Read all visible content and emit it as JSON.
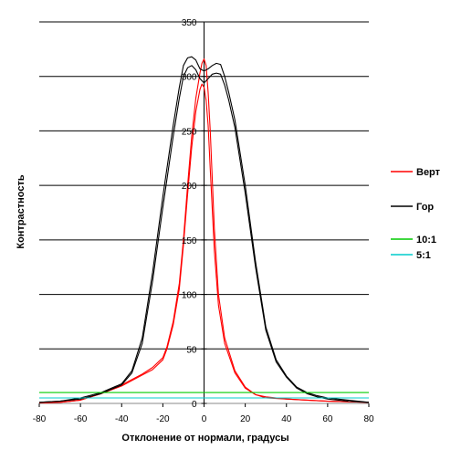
{
  "chart_data": {
    "type": "line",
    "title": "",
    "xlabel": "Отклонение от нормали, градусы",
    "ylabel": "Контрастность",
    "xlim": [
      -80,
      80
    ],
    "ylim": [
      0,
      350
    ],
    "xticks": [
      -80,
      -60,
      -40,
      -20,
      0,
      20,
      40,
      60,
      80
    ],
    "yticks": [
      0,
      50,
      100,
      150,
      200,
      250,
      300,
      350
    ],
    "grid": "horizontal",
    "legend_position": "right",
    "series": [
      {
        "name": "Верт",
        "color": "#ff0000",
        "curves": [
          [
            [
              -80,
              0.5
            ],
            [
              -70,
              1
            ],
            [
              -60,
              3
            ],
            [
              -50,
              9
            ],
            [
              -40,
              17
            ],
            [
              -30,
              27
            ],
            [
              -25,
              33
            ],
            [
              -20,
              42
            ],
            [
              -18,
              52
            ],
            [
              -15,
              75
            ],
            [
              -12,
              110
            ],
            [
              -10,
              150
            ],
            [
              -8,
              200
            ],
            [
              -6,
              245
            ],
            [
              -4,
              280
            ],
            [
              -2,
              303
            ],
            [
              -1,
              312
            ],
            [
              0,
              316
            ],
            [
              1,
              310
            ],
            [
              2,
              285
            ],
            [
              3,
              250
            ],
            [
              5,
              160
            ],
            [
              7,
              100
            ],
            [
              10,
              60
            ],
            [
              15,
              30
            ],
            [
              20,
              15
            ],
            [
              25,
              8
            ],
            [
              30,
              6
            ],
            [
              40,
              4
            ],
            [
              50,
              3
            ],
            [
              60,
              2
            ],
            [
              70,
              1.5
            ],
            [
              80,
              1
            ]
          ],
          [
            [
              -80,
              0.5
            ],
            [
              -70,
              1
            ],
            [
              -60,
              3
            ],
            [
              -50,
              9
            ],
            [
              -40,
              16
            ],
            [
              -30,
              26
            ],
            [
              -25,
              31
            ],
            [
              -20,
              40
            ],
            [
              -18,
              50
            ],
            [
              -15,
              72
            ],
            [
              -12,
              105
            ],
            [
              -10,
              145
            ],
            [
              -8,
              192
            ],
            [
              -6,
              235
            ],
            [
              -4,
              268
            ],
            [
              -2,
              288
            ],
            [
              -1,
              293
            ],
            [
              0,
              290
            ],
            [
              1,
              278
            ],
            [
              2,
              255
            ],
            [
              3,
              215
            ],
            [
              5,
              140
            ],
            [
              7,
              90
            ],
            [
              10,
              55
            ],
            [
              15,
              28
            ],
            [
              20,
              14
            ],
            [
              25,
              8
            ],
            [
              30,
              5
            ],
            [
              40,
              4
            ],
            [
              50,
              3
            ],
            [
              60,
              2
            ],
            [
              70,
              1.5
            ],
            [
              80,
              1
            ]
          ]
        ]
      },
      {
        "name": "Гор",
        "color": "#000000",
        "curves": [
          [
            [
              -80,
              1
            ],
            [
              -70,
              2
            ],
            [
              -60,
              5
            ],
            [
              -50,
              10
            ],
            [
              -40,
              18
            ],
            [
              -35,
              30
            ],
            [
              -30,
              60
            ],
            [
              -25,
              120
            ],
            [
              -20,
              190
            ],
            [
              -15,
              255
            ],
            [
              -12,
              290
            ],
            [
              -10,
              310
            ],
            [
              -8,
              317
            ],
            [
              -6,
              318
            ],
            [
              -4,
              315
            ],
            [
              -2,
              307
            ],
            [
              0,
              305
            ],
            [
              2,
              307
            ],
            [
              4,
              310
            ],
            [
              6,
              312
            ],
            [
              8,
              311
            ],
            [
              10,
              300
            ],
            [
              12,
              285
            ],
            [
              15,
              260
            ],
            [
              20,
              200
            ],
            [
              25,
              130
            ],
            [
              30,
              70
            ],
            [
              35,
              40
            ],
            [
              40,
              25
            ],
            [
              45,
              15
            ],
            [
              50,
              10
            ],
            [
              55,
              7
            ],
            [
              60,
              5
            ],
            [
              70,
              3
            ],
            [
              80,
              1
            ]
          ],
          [
            [
              -80,
              1
            ],
            [
              -70,
              2
            ],
            [
              -60,
              4
            ],
            [
              -50,
              9
            ],
            [
              -40,
              17
            ],
            [
              -35,
              28
            ],
            [
              -30,
              55
            ],
            [
              -25,
              112
            ],
            [
              -20,
              180
            ],
            [
              -15,
              245
            ],
            [
              -12,
              280
            ],
            [
              -10,
              300
            ],
            [
              -8,
              308
            ],
            [
              -6,
              310
            ],
            [
              -4,
              306
            ],
            [
              -2,
              298
            ],
            [
              0,
              294
            ],
            [
              2,
              298
            ],
            [
              4,
              302
            ],
            [
              6,
              303
            ],
            [
              8,
              302
            ],
            [
              10,
              292
            ],
            [
              12,
              278
            ],
            [
              15,
              253
            ],
            [
              20,
              193
            ],
            [
              25,
              125
            ],
            [
              30,
              67
            ],
            [
              35,
              38
            ],
            [
              40,
              24
            ],
            [
              45,
              14
            ],
            [
              50,
              9
            ],
            [
              55,
              6
            ],
            [
              60,
              4
            ],
            [
              70,
              2
            ],
            [
              80,
              1
            ]
          ]
        ]
      },
      {
        "name": "10:1",
        "color": "#00cc00",
        "curves": [
          [
            [
              -80,
              10
            ],
            [
              80,
              10
            ]
          ]
        ]
      },
      {
        "name": "5:1",
        "color": "#00cccc",
        "curves": [
          [
            [
              -80,
              5
            ],
            [
              80,
              5
            ]
          ]
        ]
      }
    ]
  }
}
